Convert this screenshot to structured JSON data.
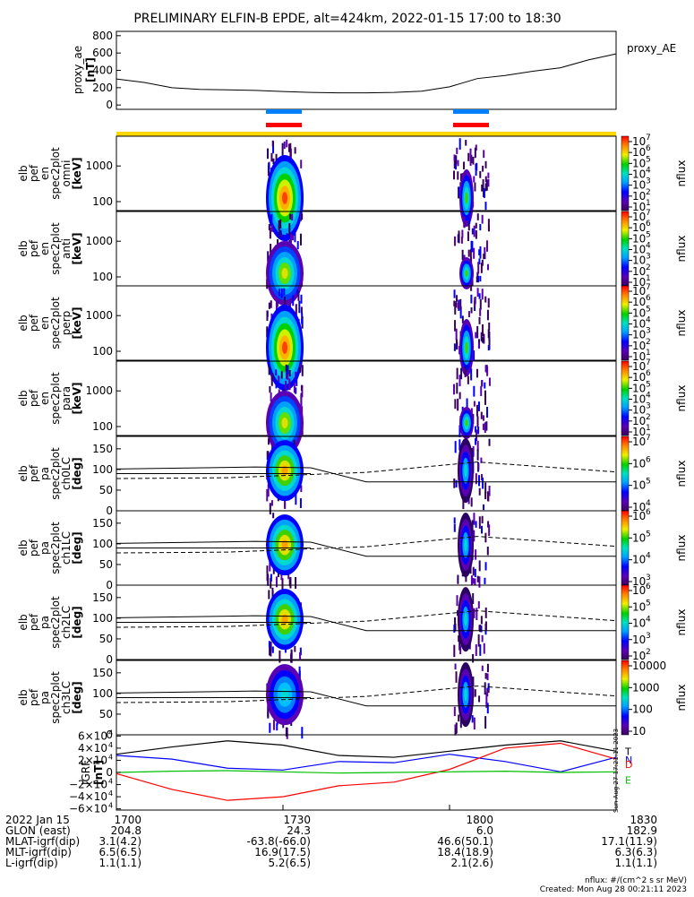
{
  "title": "PRELIMINARY ELFIN-B EPDE, alt=424km, 2022-01-15 17:00 to 18:30",
  "chart_data": [
    {
      "type": "line",
      "panel": "proxy_ae",
      "ylabel": [
        "proxy_ae",
        "[nT]"
      ],
      "legend": "proxy_AE",
      "ylim": [
        -50,
        850
      ],
      "yticks": [
        "800",
        "600",
        "400",
        "200",
        "0"
      ],
      "x_minutes": [
        0,
        5,
        10,
        15,
        20,
        25,
        30,
        35,
        40,
        45,
        50,
        55,
        60,
        65,
        70,
        75,
        80,
        85,
        90
      ],
      "values": [
        300,
        260,
        200,
        180,
        175,
        168,
        155,
        145,
        140,
        140,
        145,
        160,
        210,
        305,
        340,
        390,
        430,
        520,
        590
      ]
    },
    {
      "type": "heatmap",
      "panel": "spectrogram",
      "ylabels": [
        [
          "elb",
          "pef",
          "en",
          "spec2plot",
          "omni",
          "[keV]"
        ],
        [
          "elb",
          "pef",
          "en",
          "spec2plot",
          "anti",
          "[keV]"
        ],
        [
          "elb",
          "pef",
          "en",
          "spec2plot",
          "perp",
          "[keV]"
        ],
        [
          "elb",
          "pef",
          "en",
          "spec2plot",
          "para",
          "[keV]"
        ]
      ],
      "yticks": [
        "1000",
        "100"
      ],
      "colorbar_label": "nflux",
      "colorbar_ticks": [
        "10",
        "10",
        "10",
        "10",
        "10",
        "10",
        "10"
      ],
      "colorbar_exponents": [
        "7",
        "6",
        "5",
        "4",
        "3",
        "2",
        "1"
      ]
    },
    {
      "type": "heatmap",
      "panel": "pitch_angle",
      "ylabels": [
        [
          "elb",
          "pef",
          "pa",
          "spec2plot",
          "ch0LC",
          "[deg]"
        ],
        [
          "elb",
          "pef",
          "pa",
          "spec2plot",
          "ch1LC",
          "[deg]"
        ],
        [
          "elb",
          "pef",
          "pa",
          "spec2plot",
          "ch2LC",
          "[deg]"
        ],
        [
          "elb",
          "pef",
          "pa",
          "spec2plot",
          "ch3LC",
          "[deg]"
        ]
      ],
      "yticks": [
        "150",
        "100",
        "50",
        "0"
      ],
      "colorbar_label": "nflux",
      "colorbar_ticks": [
        [
          "10",
          "10",
          "10",
          "10"
        ],
        [
          "10",
          "10",
          "10",
          "10"
        ],
        [
          "10",
          "10",
          "10",
          "10",
          "10"
        ],
        [
          "10000",
          "1000",
          "100",
          "10"
        ]
      ],
      "colorbar_exponents": [
        [
          "7",
          "6",
          "5",
          "4"
        ],
        [
          "6",
          "5",
          "4",
          "3"
        ],
        [
          "6",
          "5",
          "4",
          "3",
          "2"
        ],
        [
          "",
          "",
          "",
          ""
        ]
      ]
    },
    {
      "type": "line",
      "panel": "igrf",
      "ylabel": [
        "IGRF",
        "[nT]"
      ],
      "yticks": [
        "6×10",
        "4×10",
        "2×10",
        "0",
        "−2×10",
        "−4×10",
        "−6×10"
      ],
      "ytick_exponent": "4",
      "ylim": [
        -62000,
        62000
      ],
      "x_minutes": [
        0,
        10,
        20,
        30,
        40,
        50,
        60,
        70,
        80,
        90
      ],
      "series": [
        {
          "name": "T",
          "color": "#000000",
          "values": [
            30000,
            42000,
            52000,
            45000,
            28000,
            25000,
            35000,
            45000,
            52000,
            35000
          ]
        },
        {
          "name": "N",
          "color": "#0000ff",
          "values": [
            28000,
            22000,
            7000,
            4000,
            18000,
            16000,
            30000,
            18000,
            1000,
            25000
          ]
        },
        {
          "name": "D",
          "color": "#ff0000",
          "values": [
            -2000,
            -28000,
            -46000,
            -40000,
            -22000,
            -16000,
            5000,
            40000,
            48000,
            22000
          ]
        },
        {
          "name": "E",
          "color": "#00c000",
          "values": [
            0,
            2000,
            3000,
            1000,
            -1000,
            0,
            1000,
            2000,
            0,
            1000
          ]
        }
      ]
    }
  ],
  "xaxis": {
    "date": "2022 Jan 15",
    "ticks": [
      "1700",
      "1730",
      "1800",
      "1830"
    ]
  },
  "ephemeris": [
    {
      "label": "GLON (east)",
      "values": [
        "204.8",
        "24.3",
        "6.0",
        "182.9"
      ]
    },
    {
      "label": "MLAT-igrf(dip)",
      "values": [
        "3.1(4.2)",
        "-63.8(-66.0)",
        "46.6(50.1)",
        "17.1(11.9)"
      ]
    },
    {
      "label": "MLT-igrf(dip)",
      "values": [
        "6.5(6.5)",
        "16.9(17.5)",
        "18.4(18.9)",
        "6.3(6.3)"
      ]
    },
    {
      "label": "L-igrf(dip)",
      "values": [
        "1.1(1.1)",
        "5.2(6.5)",
        "2.1(2.6)",
        "1.1(1.1)"
      ]
    }
  ],
  "notes": {
    "units": "nflux: #/(cm^2 s sr MeV)",
    "created": "Created: Mon Aug 28 00:21:11 2023",
    "side_stamp": "Sun Aug 27 17:21:11 2023"
  },
  "colors": {
    "science_zone_bar": "#ffd700",
    "orbit_blue": "#0080ff",
    "orbit_red": "#ff0000"
  }
}
